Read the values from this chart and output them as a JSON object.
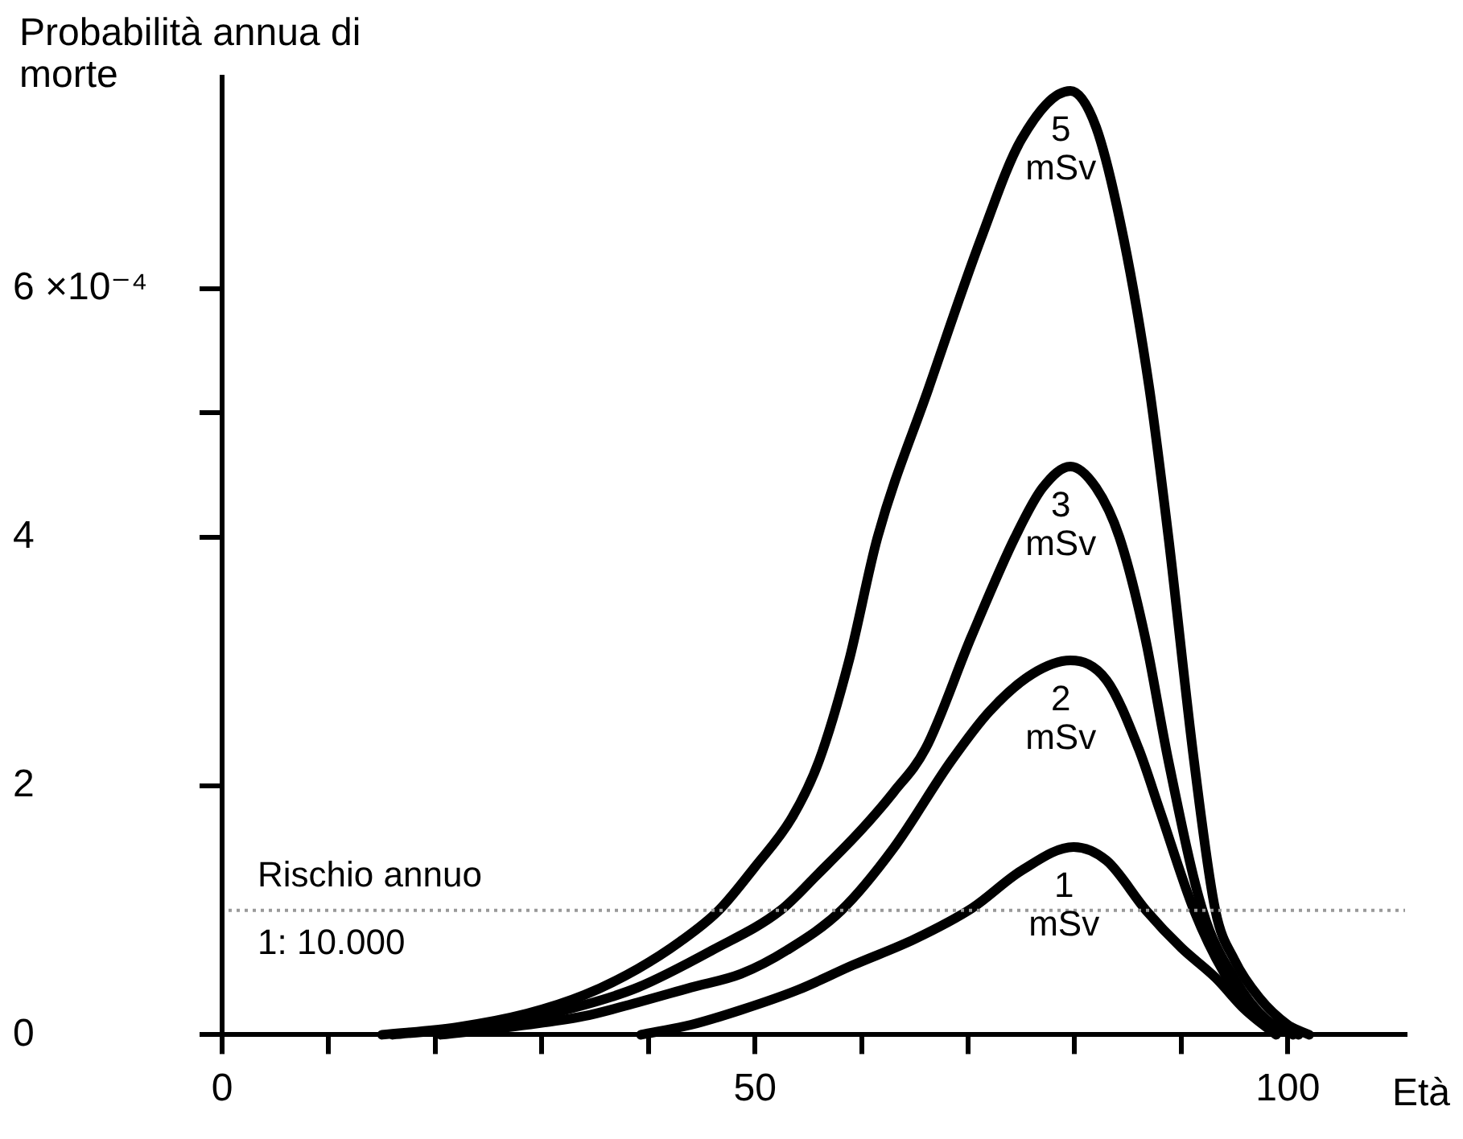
{
  "chart_data": {
    "type": "line",
    "ylabel": "Probabilità annua di morte",
    "xlabel": "Età",
    "xlim": [
      0,
      111
    ],
    "xticks": [
      0,
      {
        "value": 10,
        "label": null
      },
      {
        "value": 20,
        "label": null
      },
      {
        "value": 30,
        "label": null
      },
      {
        "value": 40,
        "label": null
      },
      50,
      {
        "value": 60,
        "label": null
      },
      {
        "value": 70,
        "label": null
      },
      {
        "value": 80,
        "label": null
      },
      {
        "value": 90,
        "label": null
      },
      100
    ],
    "ylim": [
      0,
      7.7
    ],
    "yticks": [
      0,
      2,
      4,
      {
        "value": 5,
        "label": null
      },
      6
    ],
    "annotations": [
      "×10⁻⁴"
    ],
    "grid": false,
    "legend": false,
    "marker": "none",
    "line_style": "solid",
    "series": [
      {
        "name": "5 mSv",
        "color": "#000000",
        "x": [
          15,
          22,
          28.6,
          34,
          39,
          43,
          46.6,
          50,
          53.5,
          56,
          58.8,
          61.5,
          66.3,
          71.2,
          75,
          79.6,
          82,
          84.6,
          87,
          88.8,
          91.2,
          93.2,
          95,
          97.3,
          100,
          102
        ],
        "values": [
          0,
          0.06,
          0.17,
          0.32,
          0.53,
          0.75,
          1.0,
          1.35,
          1.75,
          2.2,
          3.0,
          4.0,
          5.2,
          6.4,
          7.2,
          7.59,
          7.3,
          6.4,
          5.2,
          4.0,
          2.2,
          1.0,
          0.6,
          0.3,
          0.08,
          0
        ]
      },
      {
        "name": "3 mSv",
        "color": "#000000",
        "x": [
          16,
          22,
          28.6,
          34,
          39,
          46,
          52.4,
          56,
          60,
          63,
          66,
          70.3,
          74.4,
          77,
          79.6,
          82,
          84.2,
          86.6,
          88.8,
          92,
          95,
          98,
          101
        ],
        "values": [
          0,
          0.05,
          0.13,
          0.24,
          0.38,
          0.68,
          1.0,
          1.3,
          1.65,
          1.95,
          2.3,
          3.2,
          4.0,
          4.4,
          4.57,
          4.4,
          4.0,
          3.2,
          2.2,
          1.0,
          0.45,
          0.12,
          0
        ]
      },
      {
        "name": "2 mSv",
        "color": "#000000",
        "x": [
          20.5,
          28.6,
          34,
          39,
          44,
          48.7,
          53,
          58.1,
          63,
          68.4,
          72,
          76,
          79.6,
          83,
          86,
          88,
          91.2,
          94,
          97,
          100.5
        ],
        "values": [
          0,
          0.08,
          0.15,
          0.26,
          0.38,
          0.49,
          0.68,
          1.0,
          1.5,
          2.2,
          2.6,
          2.9,
          3.01,
          2.85,
          2.3,
          1.8,
          1.0,
          0.5,
          0.15,
          0
        ]
      },
      {
        "name": "1 mSv",
        "color": "#000000",
        "x": [
          39.3,
          44,
          48.7,
          54,
          59.2,
          65,
          70.4,
          75,
          79.9,
          83,
          86.7,
          90,
          93.2,
          96,
          98.9
        ],
        "values": [
          0,
          0.08,
          0.2,
          0.36,
          0.56,
          0.77,
          1.02,
          1.32,
          1.51,
          1.4,
          1.0,
          0.7,
          0.46,
          0.2,
          0
        ]
      }
    ],
    "ref_lines": [
      {
        "axis": "y",
        "value": 1,
        "label": "Rischio annuo\n1: 10.000",
        "color": "#999999",
        "line_style": "dotted"
      }
    ]
  }
}
